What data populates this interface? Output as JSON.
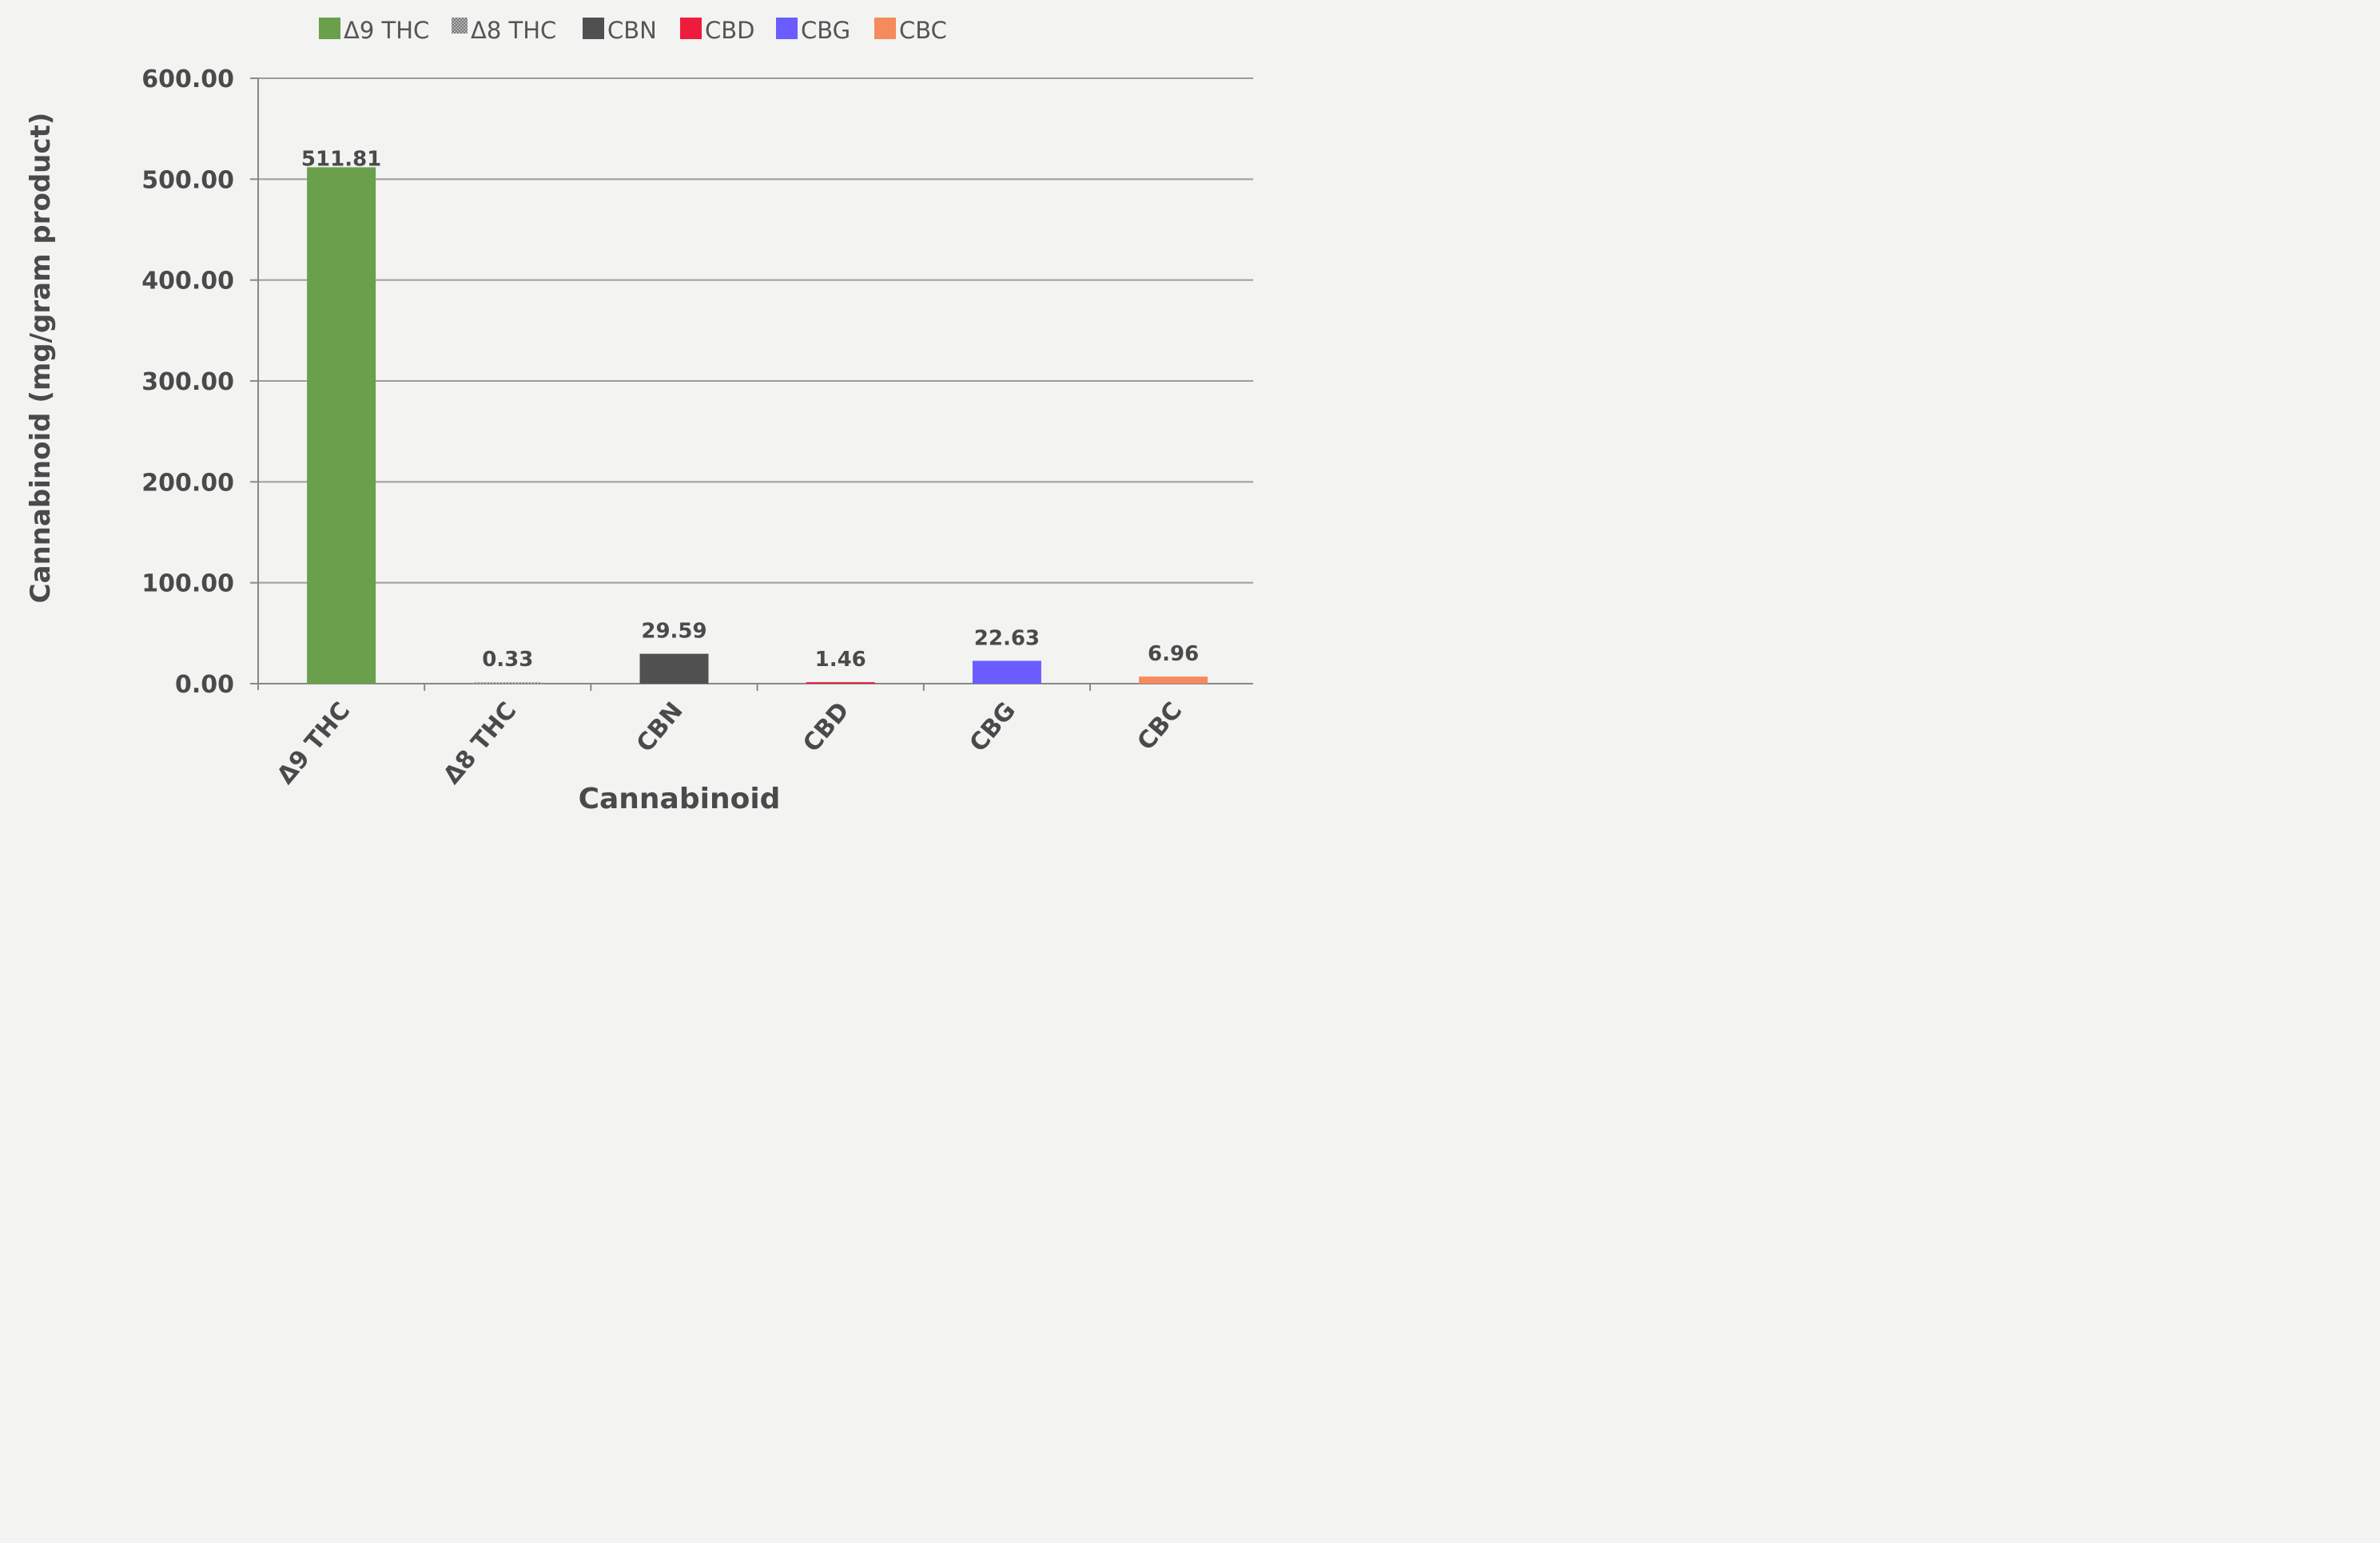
{
  "chart_data": {
    "type": "bar",
    "categories": [
      "Δ9 THC",
      "Δ8 THC",
      "CBN",
      "CBD",
      "CBG",
      "CBC"
    ],
    "values": [
      511.81,
      0.33,
      29.59,
      1.46,
      22.63,
      6.96
    ],
    "value_labels": [
      "511.81",
      "0.33",
      "29.59",
      "1.46",
      "22.63",
      "6.96"
    ],
    "colors": [
      "#6aa04c",
      "#9a9a9a",
      "#505050",
      "#ee1c3c",
      "#6b5cff",
      "#f58a5c"
    ],
    "legend": [
      "Δ9 THC",
      "Δ8 THC",
      "CBN",
      "CBD",
      "CBG",
      "CBC"
    ],
    "legend_position": "top",
    "xlabel": "Cannabinoid",
    "ylabel": "Cannabinoid (mg/gram product)",
    "ylim": [
      0,
      600
    ],
    "yticks": [
      "0.00",
      "100.00",
      "200.00",
      "300.00",
      "400.00",
      "500.00",
      "600.00"
    ],
    "grid": true
  }
}
